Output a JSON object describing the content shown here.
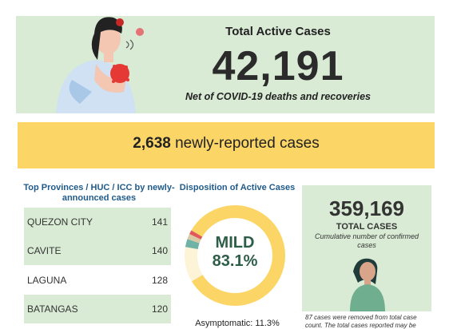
{
  "hero": {
    "title": "Total Active Cases",
    "number": "42,191",
    "subtitle": "Net of COVID-19 deaths and recoveries"
  },
  "new_cases": {
    "count": "2,638",
    "label": "newly-reported cases"
  },
  "provinces": {
    "title": "Top Provinces / HUC / ICC by newly-announced cases",
    "rows": [
      {
        "name": "QUEZON CITY",
        "value": "141"
      },
      {
        "name": "CAVITE",
        "value": "140"
      },
      {
        "name": "LAGUNA",
        "value": "128"
      },
      {
        "name": "BATANGAS",
        "value": "120"
      }
    ]
  },
  "disposition": {
    "title": "Disposition of Active Cases",
    "center_label": "MILD",
    "center_value": "83.1%",
    "asymptomatic_label": "Asymptomatic: 11.3%",
    "segments": [
      {
        "label": "Mild",
        "value": 83.1,
        "color": "#fbd566"
      },
      {
        "label": "Asymptomatic",
        "value": 11.3,
        "color": "#fdf3d6"
      },
      {
        "label": "Other-teal",
        "value": 2.6,
        "color": "#6fb3a6"
      },
      {
        "label": "Other-tan",
        "value": 1.7,
        "color": "#d9c9a4"
      },
      {
        "label": "Other-red",
        "value": 1.3,
        "color": "#e05a5a"
      }
    ]
  },
  "total": {
    "number": "359,169",
    "label": "TOTAL CASES",
    "subtitle": "Cumulative number of confirmed cases"
  },
  "footnote": "87 cases were removed from total case count. The total cases reported may be",
  "colors": {
    "green_bg": "#d9ebd5",
    "yellow_bg": "#fbd566",
    "title_blue": "#1f5a8a",
    "mild_green": "#2d5e47"
  }
}
